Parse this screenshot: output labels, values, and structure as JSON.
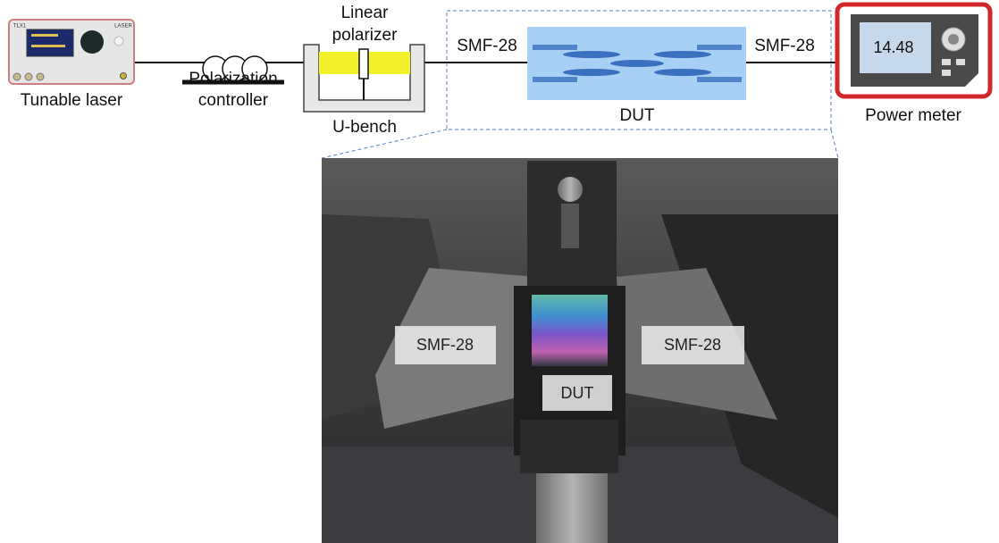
{
  "laser": {
    "label": "Tunable laser",
    "model": "TLX1",
    "badge": "LASER"
  },
  "polarization_controller": {
    "label_lines": [
      "Polarization",
      "controller"
    ]
  },
  "polarizer": {
    "label_lines": [
      "Linear",
      "polarizer"
    ]
  },
  "u_bench": {
    "label": "U-bench"
  },
  "dut_diagram": {
    "input_fiber": "SMF-28",
    "output_fiber": "SMF-28",
    "label": "DUT"
  },
  "power_meter": {
    "label": "Power meter",
    "reading": "14.48"
  },
  "photo": {
    "left_fiber": "SMF-28",
    "right_fiber": "SMF-28",
    "device": "DUT"
  }
}
